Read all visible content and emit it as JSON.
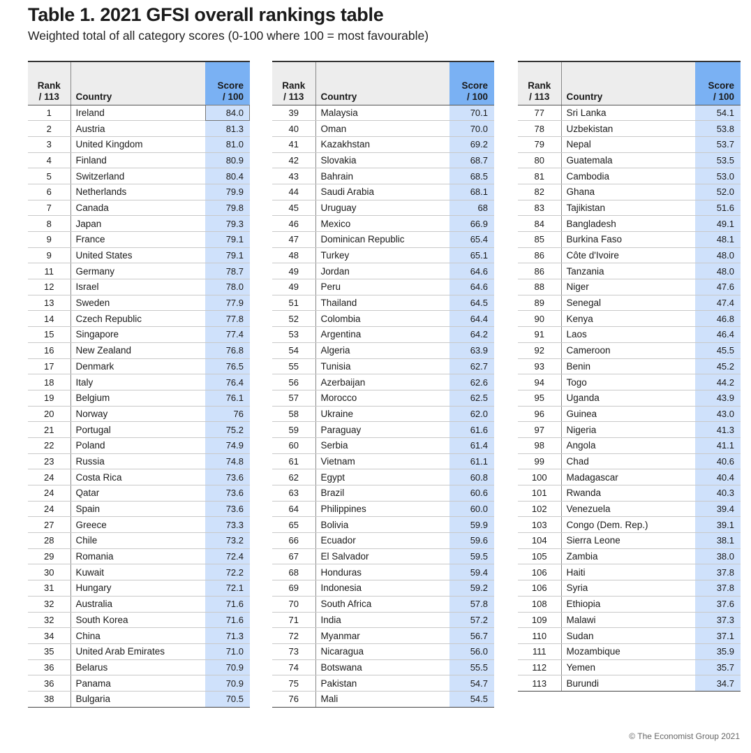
{
  "title": "Table 1. 2021 GFSI overall rankings table",
  "subtitle": "Weighted total of all category scores (0-100 where 100 = most favourable)",
  "headers": {
    "rank_line1": "Rank",
    "rank_line2": "/ 113",
    "country": "Country",
    "score_line1": "Score",
    "score_line2": "/ 100"
  },
  "tables": [
    {
      "rows": [
        [
          "1",
          "Ireland",
          "84.0"
        ],
        [
          "2",
          "Austria",
          "81.3"
        ],
        [
          "3",
          "United Kingdom",
          "81.0"
        ],
        [
          "4",
          "Finland",
          "80.9"
        ],
        [
          "5",
          "Switzerland",
          "80.4"
        ],
        [
          "6",
          "Netherlands",
          "79.9"
        ],
        [
          "7",
          "Canada",
          "79.8"
        ],
        [
          "8",
          "Japan",
          "79.3"
        ],
        [
          "9",
          "France",
          "79.1"
        ],
        [
          "9",
          "United States",
          "79.1"
        ],
        [
          "11",
          "Germany",
          "78.7"
        ],
        [
          "12",
          "Israel",
          "78.0"
        ],
        [
          "13",
          "Sweden",
          "77.9"
        ],
        [
          "14",
          "Czech Republic",
          "77.8"
        ],
        [
          "15",
          "Singapore",
          "77.4"
        ],
        [
          "16",
          "New Zealand",
          "76.8"
        ],
        [
          "17",
          "Denmark",
          "76.5"
        ],
        [
          "18",
          "Italy",
          "76.4"
        ],
        [
          "19",
          "Belgium",
          "76.1"
        ],
        [
          "20",
          "Norway",
          "76"
        ],
        [
          "21",
          "Portugal",
          "75.2"
        ],
        [
          "22",
          "Poland",
          "74.9"
        ],
        [
          "23",
          "Russia",
          "74.8"
        ],
        [
          "24",
          "Costa Rica",
          "73.6"
        ],
        [
          "24",
          "Qatar",
          "73.6"
        ],
        [
          "24",
          "Spain",
          "73.6"
        ],
        [
          "27",
          "Greece",
          "73.3"
        ],
        [
          "28",
          "Chile",
          "73.2"
        ],
        [
          "29",
          "Romania",
          "72.4"
        ],
        [
          "30",
          "Kuwait",
          "72.2"
        ],
        [
          "31",
          "Hungary",
          "72.1"
        ],
        [
          "32",
          "Australia",
          "71.6"
        ],
        [
          "32",
          "South Korea",
          "71.6"
        ],
        [
          "34",
          "China",
          "71.3"
        ],
        [
          "35",
          "United Arab Emirates",
          "71.0"
        ],
        [
          "36",
          "Belarus",
          "70.9"
        ],
        [
          "36",
          "Panama",
          "70.9"
        ],
        [
          "38",
          "Bulgaria",
          "70.5"
        ]
      ]
    },
    {
      "rows": [
        [
          "39",
          "Malaysia",
          "70.1"
        ],
        [
          "40",
          "Oman",
          "70.0"
        ],
        [
          "41",
          "Kazakhstan",
          "69.2"
        ],
        [
          "42",
          "Slovakia",
          "68.7"
        ],
        [
          "43",
          "Bahrain",
          "68.5"
        ],
        [
          "44",
          "Saudi Arabia",
          "68.1"
        ],
        [
          "45",
          "Uruguay",
          "68"
        ],
        [
          "46",
          "Mexico",
          "66.9"
        ],
        [
          "47",
          "Dominican Republic",
          "65.4"
        ],
        [
          "48",
          "Turkey",
          "65.1"
        ],
        [
          "49",
          "Jordan",
          "64.6"
        ],
        [
          "49",
          "Peru",
          "64.6"
        ],
        [
          "51",
          "Thailand",
          "64.5"
        ],
        [
          "52",
          "Colombia",
          "64.4"
        ],
        [
          "53",
          "Argentina",
          "64.2"
        ],
        [
          "54",
          "Algeria",
          "63.9"
        ],
        [
          "55",
          "Tunisia",
          "62.7"
        ],
        [
          "56",
          "Azerbaijan",
          "62.6"
        ],
        [
          "57",
          "Morocco",
          "62.5"
        ],
        [
          "58",
          "Ukraine",
          "62.0"
        ],
        [
          "59",
          "Paraguay",
          "61.6"
        ],
        [
          "60",
          "Serbia",
          "61.4"
        ],
        [
          "61",
          "Vietnam",
          "61.1"
        ],
        [
          "62",
          "Egypt",
          "60.8"
        ],
        [
          "63",
          "Brazil",
          "60.6"
        ],
        [
          "64",
          "Philippines",
          "60.0"
        ],
        [
          "65",
          "Bolivia",
          "59.9"
        ],
        [
          "66",
          "Ecuador",
          "59.6"
        ],
        [
          "67",
          "El Salvador",
          "59.5"
        ],
        [
          "68",
          "Honduras",
          "59.4"
        ],
        [
          "69",
          "Indonesia",
          "59.2"
        ],
        [
          "70",
          "South Africa",
          "57.8"
        ],
        [
          "71",
          "India",
          "57.2"
        ],
        [
          "72",
          "Myanmar",
          "56.7"
        ],
        [
          "73",
          "Nicaragua",
          "56.0"
        ],
        [
          "74",
          "Botswana",
          "55.5"
        ],
        [
          "75",
          "Pakistan",
          "54.7"
        ],
        [
          "76",
          "Mali",
          "54.5"
        ]
      ]
    },
    {
      "rows": [
        [
          "77",
          "Sri Lanka",
          "54.1"
        ],
        [
          "78",
          "Uzbekistan",
          "53.8"
        ],
        [
          "79",
          "Nepal",
          "53.7"
        ],
        [
          "80",
          "Guatemala",
          "53.5"
        ],
        [
          "81",
          "Cambodia",
          "53.0"
        ],
        [
          "82",
          "Ghana",
          "52.0"
        ],
        [
          "83",
          "Tajikistan",
          "51.6"
        ],
        [
          "84",
          "Bangladesh",
          "49.1"
        ],
        [
          "85",
          "Burkina Faso",
          "48.1"
        ],
        [
          "86",
          "Côte d'Ivoire",
          "48.0"
        ],
        [
          "86",
          "Tanzania",
          "48.0"
        ],
        [
          "88",
          "Niger",
          "47.6"
        ],
        [
          "89",
          "Senegal",
          "47.4"
        ],
        [
          "90",
          "Kenya",
          "46.8"
        ],
        [
          "91",
          "Laos",
          "46.4"
        ],
        [
          "92",
          "Cameroon",
          "45.5"
        ],
        [
          "93",
          "Benin",
          "45.2"
        ],
        [
          "94",
          "Togo",
          "44.2"
        ],
        [
          "95",
          "Uganda",
          "43.9"
        ],
        [
          "96",
          "Guinea",
          "43.0"
        ],
        [
          "97",
          "Nigeria",
          "41.3"
        ],
        [
          "98",
          "Angola",
          "41.1"
        ],
        [
          "99",
          "Chad",
          "40.6"
        ],
        [
          "100",
          "Madagascar",
          "40.4"
        ],
        [
          "101",
          "Rwanda",
          "40.3"
        ],
        [
          "102",
          "Venezuela",
          "39.4"
        ],
        [
          "103",
          "Congo (Dem. Rep.)",
          "39.1"
        ],
        [
          "104",
          "Sierra Leone",
          "38.1"
        ],
        [
          "105",
          "Zambia",
          "38.0"
        ],
        [
          "106",
          "Haiti",
          "37.8"
        ],
        [
          "106",
          "Syria",
          "37.8"
        ],
        [
          "108",
          "Ethiopia",
          "37.6"
        ],
        [
          "109",
          "Malawi",
          "37.3"
        ],
        [
          "110",
          "Sudan",
          "37.1"
        ],
        [
          "111",
          "Mozambique",
          "35.9"
        ],
        [
          "112",
          "Yemen",
          "35.7"
        ],
        [
          "113",
          "Burundi",
          "34.7"
        ]
      ]
    }
  ],
  "colors": {
    "score_header_bg": "#7ab1f3",
    "score_cell_bg": "#cfe1fb",
    "header_bg": "#ededed"
  },
  "copyright": "© The Economist Group 2021"
}
